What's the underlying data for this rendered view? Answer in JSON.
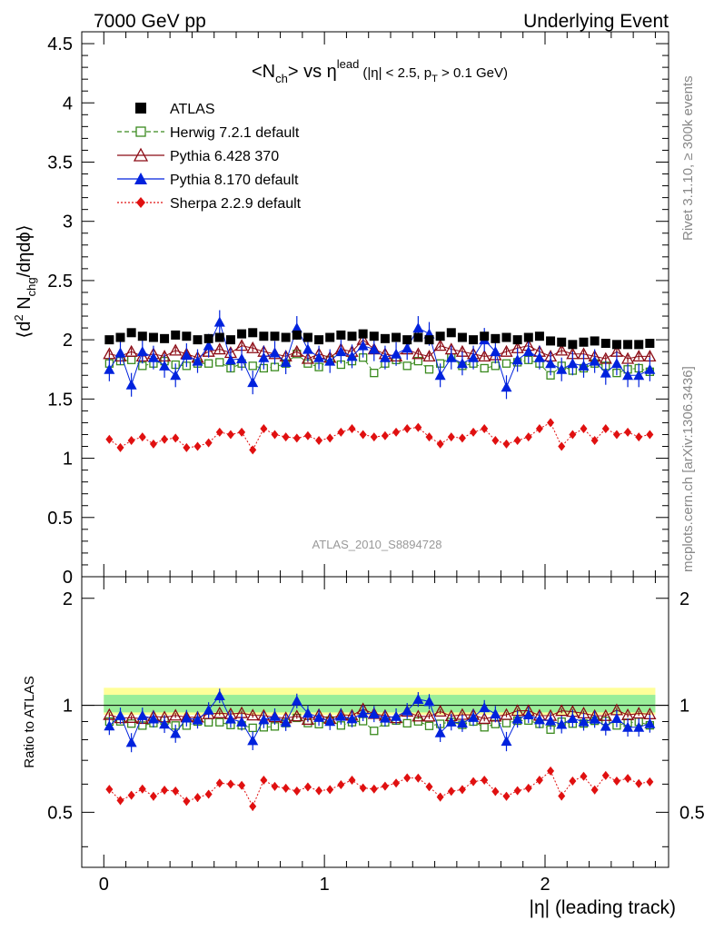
{
  "header": {
    "left": "7000 GeV pp",
    "right": "Underlying Event"
  },
  "side": {
    "rivet": "Rivet 3.1.10, ≥ 300k events",
    "mcplots": "mcplots.cern.ch [arXiv:1306.3436]"
  },
  "watermark": "ATLAS_2010_S8894728",
  "title": {
    "main": "<N",
    "main_sub": "ch",
    "main_mid": "> vs η",
    "main_sup": "lead",
    "cut": "(|η| < 2.5, p",
    "cut_sub": "T",
    "cut_end": " > 0.1 GeV)"
  },
  "axes": {
    "ylabel_top": "⟨d² N_chg/dηdϕ⟩",
    "ylabel_top_parts": [
      "⟨d",
      "2",
      " N",
      "chg",
      "/dηdϕ⟩"
    ],
    "ylabel_bottom": "Ratio to ATLAS",
    "xlabel": "|η| (leading track)",
    "x_ticks": [
      "0",
      "1",
      "2"
    ],
    "y_ticks_top": [
      "0",
      "0.5",
      "1",
      "1.5",
      "2",
      "2.5",
      "3",
      "3.5",
      "4",
      "4.5"
    ],
    "y_ticks_bottom": [
      "0.5",
      "1",
      "2"
    ]
  },
  "colors": {
    "atlas": "#000000",
    "herwig": "#3a8a1e",
    "pythia6": "#8b0a14",
    "pythia8": "#0022dd",
    "sherpa": "#e01010",
    "band_inner": "#99ee99",
    "band_outer": "#ffff99"
  },
  "chart_data": {
    "type": "scatter",
    "title": "<N_ch> vs η^lead (|η| < 2.5, p_T > 0.1 GeV)",
    "xlabel": "|η| (leading track)",
    "ylabel": "⟨d² N_chg/dηdϕ⟩",
    "xlim": [
      -0.1,
      2.56
    ],
    "ylim": [
      0,
      4.6
    ],
    "ratio_ylim": [
      0.35,
      2.3
    ],
    "ratio_ylabel": "Ratio to ATLAS",
    "legend_position": "top-left",
    "x": [
      0.025,
      0.075,
      0.125,
      0.175,
      0.225,
      0.275,
      0.325,
      0.375,
      0.425,
      0.475,
      0.525,
      0.575,
      0.625,
      0.675,
      0.725,
      0.775,
      0.825,
      0.875,
      0.925,
      0.975,
      1.025,
      1.075,
      1.125,
      1.175,
      1.225,
      1.275,
      1.325,
      1.375,
      1.425,
      1.475,
      1.525,
      1.575,
      1.625,
      1.675,
      1.725,
      1.775,
      1.825,
      1.875,
      1.925,
      1.975,
      2.025,
      2.075,
      2.125,
      2.175,
      2.225,
      2.275,
      2.325,
      2.375,
      2.425,
      2.475
    ],
    "series": [
      {
        "name": "ATLAS",
        "marker": "square-filled",
        "values": [
          2.0,
          2.02,
          2.06,
          2.03,
          2.02,
          2.01,
          2.04,
          2.03,
          2.0,
          2.01,
          2.02,
          2.0,
          2.05,
          2.06,
          2.03,
          2.03,
          2.02,
          2.04,
          2.02,
          2.0,
          2.02,
          2.04,
          2.03,
          2.05,
          2.03,
          2.01,
          2.02,
          2.0,
          2.02,
          2.0,
          2.03,
          2.06,
          2.02,
          2.0,
          2.03,
          2.01,
          2.02,
          2.0,
          2.02,
          2.03,
          1.99,
          1.98,
          1.96,
          1.98,
          1.99,
          1.97,
          1.96,
          1.96,
          1.96,
          1.97
        ]
      },
      {
        "name": "Herwig 7.2.1 default",
        "marker": "square-open",
        "line": "dashed",
        "values": [
          1.8,
          1.82,
          1.83,
          1.78,
          1.8,
          1.82,
          1.79,
          1.78,
          1.8,
          1.8,
          1.81,
          1.76,
          1.8,
          1.78,
          1.76,
          1.77,
          1.8,
          1.88,
          1.8,
          1.77,
          1.83,
          1.79,
          1.82,
          1.85,
          1.72,
          1.8,
          1.83,
          1.78,
          1.82,
          1.75,
          1.8,
          1.85,
          1.78,
          1.8,
          1.76,
          1.78,
          1.8,
          1.81,
          1.83,
          1.8,
          1.7,
          1.78,
          1.74,
          1.76,
          1.8,
          1.78,
          1.72,
          1.75,
          1.76,
          1.73
        ]
      },
      {
        "name": "Pythia 6.428 370",
        "marker": "triangle-open",
        "line": "solid",
        "values": [
          1.88,
          1.86,
          1.9,
          1.86,
          1.88,
          1.86,
          1.91,
          1.88,
          1.85,
          1.9,
          1.92,
          1.89,
          1.95,
          1.93,
          1.9,
          1.88,
          1.86,
          1.9,
          1.84,
          1.88,
          1.85,
          1.92,
          1.9,
          2.0,
          1.92,
          1.88,
          1.86,
          1.92,
          1.88,
          1.86,
          1.95,
          1.92,
          1.9,
          1.88,
          1.86,
          1.87,
          1.9,
          1.93,
          1.95,
          1.9,
          1.86,
          1.91,
          1.88,
          1.88,
          1.86,
          1.84,
          1.9,
          1.84,
          1.86,
          1.86
        ]
      },
      {
        "name": "Pythia 8.170 default",
        "marker": "triangle-filled",
        "line": "solid",
        "values": [
          1.75,
          1.89,
          1.62,
          1.9,
          1.85,
          1.78,
          1.7,
          1.87,
          1.82,
          1.95,
          2.15,
          1.83,
          1.84,
          1.64,
          1.85,
          1.89,
          1.81,
          2.1,
          1.92,
          1.85,
          1.82,
          1.9,
          1.86,
          1.95,
          1.92,
          1.85,
          1.88,
          1.93,
          2.1,
          2.05,
          1.7,
          1.85,
          1.8,
          1.85,
          2.0,
          1.9,
          1.6,
          1.83,
          1.9,
          1.85,
          1.8,
          1.75,
          1.8,
          1.78,
          1.82,
          1.72,
          1.8,
          1.7,
          1.7,
          1.75
        ]
      },
      {
        "name": "Sherpa 2.2.9 default",
        "marker": "diamond-filled",
        "line": "dotted",
        "values": [
          1.16,
          1.09,
          1.15,
          1.18,
          1.12,
          1.16,
          1.17,
          1.09,
          1.1,
          1.13,
          1.22,
          1.2,
          1.22,
          1.07,
          1.25,
          1.2,
          1.18,
          1.17,
          1.19,
          1.15,
          1.17,
          1.22,
          1.25,
          1.2,
          1.18,
          1.19,
          1.22,
          1.25,
          1.26,
          1.18,
          1.12,
          1.18,
          1.17,
          1.22,
          1.25,
          1.15,
          1.12,
          1.15,
          1.18,
          1.25,
          1.3,
          1.1,
          1.2,
          1.25,
          1.15,
          1.25,
          1.2,
          1.22,
          1.18,
          1.2
        ]
      }
    ]
  }
}
